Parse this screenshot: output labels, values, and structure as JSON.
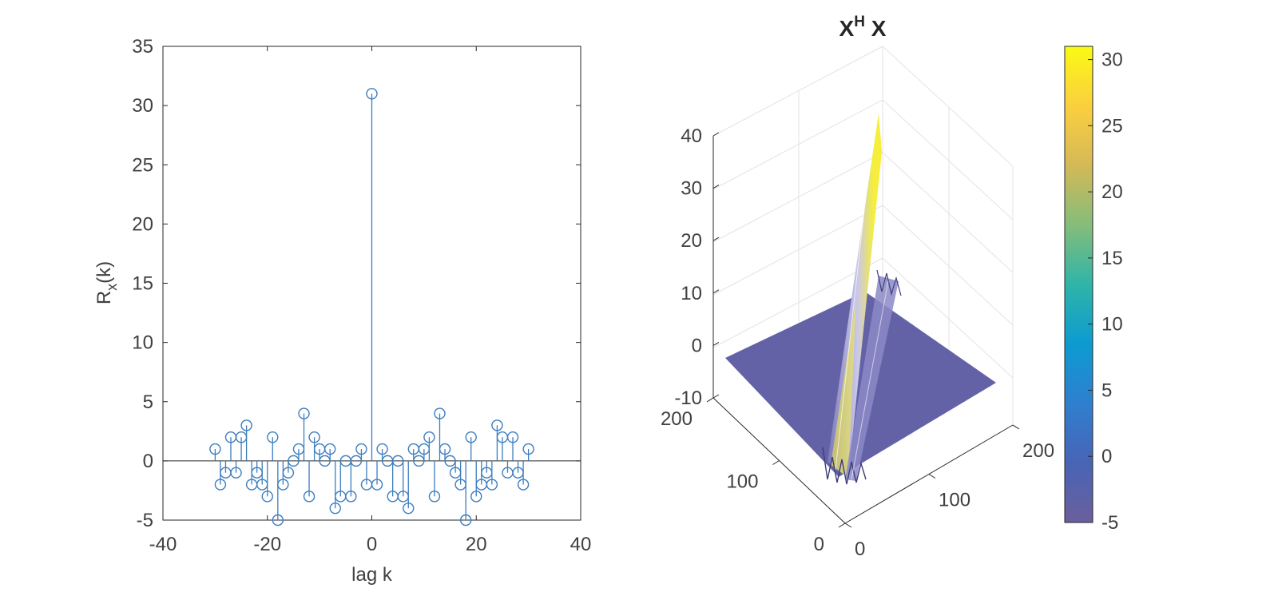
{
  "chart_data": [
    {
      "type": "stem",
      "title": "",
      "xlabel": "lag k",
      "ylabel_main": "R",
      "ylabel_sub": "x",
      "ylabel_tail": "(k)",
      "xlim": [
        -40,
        40
      ],
      "ylim": [
        -5,
        35
      ],
      "xticks": [
        "-40",
        "-20",
        "0",
        "20",
        "40"
      ],
      "yticks": [
        "-5",
        "0",
        "5",
        "10",
        "15",
        "20",
        "25",
        "30",
        "35"
      ],
      "color": "#3c7dbf",
      "x": [
        -30,
        -29,
        -28,
        -27,
        -26,
        -25,
        -24,
        -23,
        -22,
        -21,
        -20,
        -19,
        -18,
        -17,
        -16,
        -15,
        -14,
        -13,
        -12,
        -11,
        -10,
        -9,
        -8,
        -7,
        -6,
        -5,
        -4,
        -3,
        -2,
        -1,
        0,
        1,
        2,
        3,
        4,
        5,
        6,
        7,
        8,
        9,
        10,
        11,
        12,
        13,
        14,
        15,
        16,
        17,
        18,
        19,
        20,
        21,
        22,
        23,
        24,
        25,
        26,
        27,
        28,
        29,
        30
      ],
      "values": [
        1,
        -2,
        -1,
        2,
        -1,
        2,
        3,
        -2,
        -1,
        -2,
        -3,
        2,
        -5,
        -2,
        -1,
        0,
        1,
        4,
        -3,
        2,
        1,
        0,
        1,
        -4,
        -3,
        0,
        -3,
        0,
        1,
        -2,
        31,
        -2,
        1,
        0,
        -3,
        0,
        -3,
        -4,
        1,
        0,
        1,
        2,
        -3,
        4,
        1,
        0,
        -1,
        -2,
        -5,
        2,
        -3,
        -2,
        -1,
        -2,
        3,
        2,
        -1,
        2,
        -1,
        -2,
        1
      ]
    },
    {
      "type": "surface3d",
      "title_main": "X",
      "title_sup": "H",
      "title_tail": " X",
      "zticks": [
        "-10",
        "0",
        "10",
        "20",
        "30",
        "40"
      ],
      "xticks": [
        "0",
        "100",
        "200"
      ],
      "yticks": [
        "0",
        "100",
        "200"
      ],
      "zlim": [
        -10,
        40
      ],
      "grid": true,
      "base_color": "#6664a8",
      "peak_color": "#f5ee3a",
      "peak_value": 31,
      "colorbar": {
        "ticks": [
          "-5",
          "0",
          "5",
          "10",
          "15",
          "20",
          "25",
          "30"
        ],
        "range": [
          -5,
          31
        ],
        "colors": [
          "#6b5f9c",
          "#4864b6",
          "#2f7fcf",
          "#0c9bd1",
          "#2fb4a8",
          "#85bd7a",
          "#d4b957",
          "#fbcf3e",
          "#f9fa14"
        ]
      }
    }
  ]
}
